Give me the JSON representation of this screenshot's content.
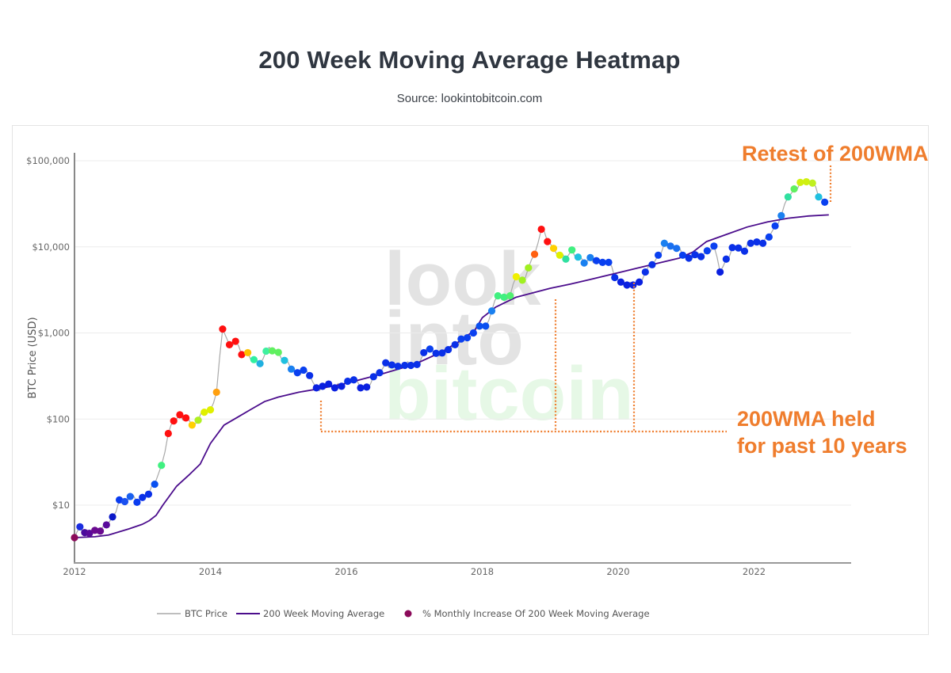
{
  "header": {
    "title": "200 Week Moving Average Heatmap",
    "subtitle": "Source: lookintobitcoin.com"
  },
  "watermark": {
    "lines": [
      "look",
      "into",
      "bitcoin"
    ],
    "colors": [
      "#e3e3e3",
      "#e3e3e3",
      "#e6f8e6"
    ]
  },
  "annotations": [
    {
      "text": "Retest of 200WMA",
      "color": "#ef7d2d"
    },
    {
      "text": "200WMA held",
      "color": "#ef7d2d"
    },
    {
      "text": "for past 10 years",
      "color": "#ef7d2d"
    }
  ],
  "annotation_lines": {
    "retest_vertical": {
      "x": 2023.1,
      "y_from": 52000,
      "y_to": 28000
    },
    "support_verticals": [
      {
        "x": 2015.65,
        "y_from": 200,
        "y_to": 84
      },
      {
        "x": 2019.05,
        "y_from": 3300,
        "y_to": 84
      },
      {
        "x": 2020.2,
        "y_from": 4000,
        "y_to": 84
      }
    ],
    "support_horizontal": {
      "y": 84,
      "x_from": 2015.65,
      "x_to": 2021.5
    },
    "color": "#ef7d2d"
  },
  "legend": {
    "items": [
      {
        "label": "BTC Price",
        "type": "line",
        "color": "#a9a9a9"
      },
      {
        "label": "200 Week Moving Average",
        "type": "line",
        "color": "#4b0d8c"
      },
      {
        "label": "% Monthly Increase Of 200 Week Moving Average",
        "type": "dot",
        "color": "#8b0a5a"
      }
    ]
  },
  "chart_data": {
    "type": "scatter",
    "title": "200 Week Moving Average Heatmap",
    "subtitle": "Source: lookintobitcoin.com",
    "xlabel": "",
    "ylabel": "BTC Price (USD)",
    "yscale": "log",
    "ylim": [
      2.1,
      160000
    ],
    "xlim": [
      2012.0,
      2023.3
    ],
    "x_ticks": [
      {
        "value": 2012,
        "label": "2012"
      },
      {
        "value": 2014,
        "label": "2014"
      },
      {
        "value": 2016,
        "label": "2016"
      },
      {
        "value": 2018,
        "label": "2018"
      },
      {
        "value": 2020,
        "label": "2020"
      },
      {
        "value": 2022,
        "label": "2022"
      }
    ],
    "y_ticks": [
      {
        "value": 10,
        "label": "$10"
      },
      {
        "value": 100,
        "label": "$100"
      },
      {
        "value": 1000,
        "label": "$1,000"
      },
      {
        "value": 10000,
        "label": "$10,000"
      },
      {
        "value": 100000,
        "label": "$100,000"
      }
    ],
    "grid": true,
    "legend_position": "bottom-center",
    "series": [
      {
        "name": "200 Week Moving Average",
        "type": "line",
        "color": "#4b0d8c",
        "x": [
          2012.0,
          2012.3,
          2012.5,
          2012.8,
          2013.0,
          2013.1,
          2013.2,
          2013.3,
          2013.5,
          2013.7,
          2013.85,
          2014.0,
          2014.2,
          2014.4,
          2014.6,
          2014.8,
          2015.0,
          2015.3,
          2015.6,
          2016.0,
          2016.5,
          2017.0,
          2017.4,
          2017.7,
          2017.9,
          2018.0,
          2018.2,
          2018.5,
          2018.8,
          2019.0,
          2019.3,
          2019.6,
          2020.0,
          2020.3,
          2020.6,
          2020.9,
          2021.1,
          2021.3,
          2021.6,
          2021.9,
          2022.2,
          2022.5,
          2022.8,
          2023.1
        ],
        "values": [
          4.2,
          4.3,
          4.5,
          5.3,
          6.0,
          6.6,
          7.6,
          10.0,
          16.5,
          23,
          30,
          52,
          85,
          105,
          130,
          160,
          180,
          205,
          225,
          260,
          330,
          430,
          600,
          830,
          1100,
          1500,
          2000,
          2600,
          3000,
          3300,
          3700,
          4200,
          5000,
          5700,
          6500,
          7400,
          8700,
          11500,
          14000,
          17000,
          19500,
          21500,
          22800,
          23500
        ]
      },
      {
        "name": "BTC Price",
        "type": "line",
        "color": "#a9a9a9",
        "note": "price path follows the heatmap points closely"
      },
      {
        "name": "% Monthly Increase Of 200 Week Moving Average",
        "type": "scatter",
        "color_scale": "purple(low) -> blue -> cyan -> green -> yellow -> orange -> red(high)",
        "points": [
          {
            "x": 2012.0,
            "y": 4.2,
            "c": "#8b0a5a"
          },
          {
            "x": 2012.08,
            "y": 5.6,
            "c": "#1a2de0"
          },
          {
            "x": 2012.15,
            "y": 4.8,
            "c": "#4a0a9c"
          },
          {
            "x": 2012.22,
            "y": 4.7,
            "c": "#5a0a9a"
          },
          {
            "x": 2012.3,
            "y": 5.1,
            "c": "#6a0a90"
          },
          {
            "x": 2012.38,
            "y": 5.0,
            "c": "#6a0a90"
          },
          {
            "x": 2012.47,
            "y": 5.9,
            "c": "#5a0a9c"
          },
          {
            "x": 2012.56,
            "y": 7.3,
            "c": "#0a18c8"
          },
          {
            "x": 2012.66,
            "y": 11.5,
            "c": "#0a3cf0"
          },
          {
            "x": 2012.74,
            "y": 11.0,
            "c": "#1a50f0"
          },
          {
            "x": 2012.82,
            "y": 12.6,
            "c": "#1a60f0"
          },
          {
            "x": 2012.92,
            "y": 10.8,
            "c": "#0a3cf0"
          },
          {
            "x": 2013.0,
            "y": 12.3,
            "c": "#0a30e8"
          },
          {
            "x": 2013.09,
            "y": 13.4,
            "c": "#0a30e8"
          },
          {
            "x": 2013.18,
            "y": 17.5,
            "c": "#0a50f0"
          },
          {
            "x": 2013.28,
            "y": 29,
            "c": "#40f080"
          },
          {
            "x": 2013.38,
            "y": 68,
            "c": "#ff1010"
          },
          {
            "x": 2013.46,
            "y": 95,
            "c": "#ff1010"
          },
          {
            "x": 2013.55,
            "y": 112,
            "c": "#ff1010"
          },
          {
            "x": 2013.64,
            "y": 103,
            "c": "#ff1010"
          },
          {
            "x": 2013.73,
            "y": 85,
            "c": "#ffd000"
          },
          {
            "x": 2013.82,
            "y": 97,
            "c": "#b0f020"
          },
          {
            "x": 2013.91,
            "y": 120,
            "c": "#e0f000"
          },
          {
            "x": 2014.0,
            "y": 128,
            "c": "#e0f000"
          },
          {
            "x": 2014.09,
            "y": 205,
            "c": "#ffa010"
          },
          {
            "x": 2014.18,
            "y": 1110,
            "c": "#ff1010"
          },
          {
            "x": 2014.28,
            "y": 730,
            "c": "#ff1010"
          },
          {
            "x": 2014.37,
            "y": 800,
            "c": "#ff1010"
          },
          {
            "x": 2014.46,
            "y": 560,
            "c": "#ff1010"
          },
          {
            "x": 2014.55,
            "y": 590,
            "c": "#ffc000"
          },
          {
            "x": 2014.64,
            "y": 490,
            "c": "#30f0a0"
          },
          {
            "x": 2014.73,
            "y": 440,
            "c": "#20b0e0"
          },
          {
            "x": 2014.82,
            "y": 615,
            "c": "#40f0a0"
          },
          {
            "x": 2014.91,
            "y": 620,
            "c": "#60f060"
          },
          {
            "x": 2015.0,
            "y": 595,
            "c": "#60f060"
          },
          {
            "x": 2015.09,
            "y": 480,
            "c": "#20c0e0"
          },
          {
            "x": 2015.19,
            "y": 380,
            "c": "#1a80f0"
          },
          {
            "x": 2015.28,
            "y": 345,
            "c": "#0a40f0"
          },
          {
            "x": 2015.37,
            "y": 370,
            "c": "#0a40f0"
          },
          {
            "x": 2015.46,
            "y": 320,
            "c": "#0a30e8"
          },
          {
            "x": 2015.56,
            "y": 230,
            "c": "#0a20e0"
          },
          {
            "x": 2015.65,
            "y": 240,
            "c": "#0a20e0"
          },
          {
            "x": 2015.74,
            "y": 255,
            "c": "#0a20e0"
          },
          {
            "x": 2015.83,
            "y": 230,
            "c": "#0a20e0"
          },
          {
            "x": 2015.93,
            "y": 240,
            "c": "#0a20e0"
          },
          {
            "x": 2016.02,
            "y": 275,
            "c": "#0a30e8"
          },
          {
            "x": 2016.11,
            "y": 285,
            "c": "#0a30e8"
          },
          {
            "x": 2016.21,
            "y": 230,
            "c": "#0a20e0"
          },
          {
            "x": 2016.3,
            "y": 235,
            "c": "#0a20e0"
          },
          {
            "x": 2016.4,
            "y": 310,
            "c": "#0a30e8"
          },
          {
            "x": 2016.49,
            "y": 345,
            "c": "#0a30e8"
          },
          {
            "x": 2016.58,
            "y": 450,
            "c": "#0a30e8"
          },
          {
            "x": 2016.67,
            "y": 425,
            "c": "#0a30e8"
          },
          {
            "x": 2016.76,
            "y": 410,
            "c": "#0a30e8"
          },
          {
            "x": 2016.86,
            "y": 420,
            "c": "#0a30e8"
          },
          {
            "x": 2016.95,
            "y": 420,
            "c": "#0a30e8"
          },
          {
            "x": 2017.04,
            "y": 430,
            "c": "#0a30e8"
          },
          {
            "x": 2017.14,
            "y": 590,
            "c": "#0a30e8"
          },
          {
            "x": 2017.23,
            "y": 650,
            "c": "#0a40f0"
          },
          {
            "x": 2017.32,
            "y": 580,
            "c": "#0a30e8"
          },
          {
            "x": 2017.41,
            "y": 585,
            "c": "#0a30e8"
          },
          {
            "x": 2017.5,
            "y": 640,
            "c": "#0a30e8"
          },
          {
            "x": 2017.6,
            "y": 730,
            "c": "#0a30e8"
          },
          {
            "x": 2017.69,
            "y": 850,
            "c": "#0a40f0"
          },
          {
            "x": 2017.78,
            "y": 880,
            "c": "#0a40f0"
          },
          {
            "x": 2017.87,
            "y": 1000,
            "c": "#0a40f0"
          },
          {
            "x": 2017.96,
            "y": 1200,
            "c": "#0a50f0"
          },
          {
            "x": 2018.05,
            "y": 1200,
            "c": "#0a50f0"
          },
          {
            "x": 2018.14,
            "y": 1800,
            "c": "#1a80f0"
          },
          {
            "x": 2018.23,
            "y": 2700,
            "c": "#40f080"
          },
          {
            "x": 2018.32,
            "y": 2600,
            "c": "#40f080"
          },
          {
            "x": 2018.41,
            "y": 2700,
            "c": "#50f070"
          },
          {
            "x": 2018.5,
            "y": 4500,
            "c": "#f0f000"
          },
          {
            "x": 2018.59,
            "y": 4100,
            "c": "#a0f020"
          },
          {
            "x": 2018.68,
            "y": 5700,
            "c": "#a0f020"
          },
          {
            "x": 2018.77,
            "y": 8200,
            "c": "#ff6010"
          },
          {
            "x": 2018.87,
            "y": 16000,
            "c": "#ff1010"
          },
          {
            "x": 2018.96,
            "y": 11500,
            "c": "#ff1010"
          },
          {
            "x": 2019.05,
            "y": 9600,
            "c": "#ffd000"
          },
          {
            "x": 2019.14,
            "y": 8000,
            "c": "#e0f000"
          },
          {
            "x": 2019.23,
            "y": 7200,
            "c": "#30e0a0"
          },
          {
            "x": 2019.32,
            "y": 9200,
            "c": "#40f080"
          },
          {
            "x": 2019.41,
            "y": 7600,
            "c": "#20c0e0"
          },
          {
            "x": 2019.5,
            "y": 6500,
            "c": "#1a80f0"
          },
          {
            "x": 2019.59,
            "y": 7500,
            "c": "#1a80f0"
          },
          {
            "x": 2019.68,
            "y": 6900,
            "c": "#0a40f0"
          },
          {
            "x": 2019.77,
            "y": 6600,
            "c": "#0a40f0"
          },
          {
            "x": 2019.86,
            "y": 6600,
            "c": "#0a40f0"
          },
          {
            "x": 2019.95,
            "y": 4400,
            "c": "#0a30e8"
          },
          {
            "x": 2020.04,
            "y": 3900,
            "c": "#0a20e0"
          },
          {
            "x": 2020.13,
            "y": 3600,
            "c": "#0a20e0"
          },
          {
            "x": 2020.22,
            "y": 3600,
            "c": "#0a20e0"
          },
          {
            "x": 2020.31,
            "y": 3900,
            "c": "#0a20e0"
          },
          {
            "x": 2020.4,
            "y": 5100,
            "c": "#0a30e8"
          },
          {
            "x": 2020.5,
            "y": 6200,
            "c": "#0a30e8"
          },
          {
            "x": 2020.59,
            "y": 8000,
            "c": "#0a40f0"
          },
          {
            "x": 2020.68,
            "y": 11000,
            "c": "#1a80f0"
          },
          {
            "x": 2020.77,
            "y": 10200,
            "c": "#1a70f0"
          },
          {
            "x": 2020.86,
            "y": 9600,
            "c": "#1a70f0"
          },
          {
            "x": 2020.95,
            "y": 8000,
            "c": "#0a40f0"
          },
          {
            "x": 2021.04,
            "y": 7400,
            "c": "#0a30e8"
          },
          {
            "x": 2021.13,
            "y": 8100,
            "c": "#0a30e8"
          },
          {
            "x": 2021.22,
            "y": 7700,
            "c": "#0a30e8"
          },
          {
            "x": 2021.31,
            "y": 9000,
            "c": "#0a40f0"
          },
          {
            "x": 2021.41,
            "y": 10200,
            "c": "#0a40f0"
          },
          {
            "x": 2021.5,
            "y": 5100,
            "c": "#0a20e0"
          },
          {
            "x": 2021.59,
            "y": 7200,
            "c": "#0a30e8"
          },
          {
            "x": 2021.68,
            "y": 9800,
            "c": "#0a30e8"
          },
          {
            "x": 2021.77,
            "y": 9700,
            "c": "#0a30e8"
          },
          {
            "x": 2021.86,
            "y": 8900,
            "c": "#0a30e8"
          },
          {
            "x": 2021.95,
            "y": 11000,
            "c": "#0a30e8"
          },
          {
            "x": 2022.04,
            "y": 11400,
            "c": "#0a30e8"
          },
          {
            "x": 2022.13,
            "y": 11000,
            "c": "#0a30e8"
          },
          {
            "x": 2022.22,
            "y": 13000,
            "c": "#0a40f0"
          },
          {
            "x": 2022.31,
            "y": 17500,
            "c": "#0a40f0"
          },
          {
            "x": 2022.4,
            "y": 23000,
            "c": "#1a80f0"
          },
          {
            "x": 2022.5,
            "y": 38000,
            "c": "#30e0a0"
          },
          {
            "x": 2022.59,
            "y": 47000,
            "c": "#60f060"
          },
          {
            "x": 2022.68,
            "y": 56000,
            "c": "#d0f010"
          },
          {
            "x": 2022.77,
            "y": 57000,
            "c": "#d0f010"
          },
          {
            "x": 2022.86,
            "y": 55000,
            "c": "#c0f020"
          },
          {
            "x": 2022.95,
            "y": 38000,
            "c": "#20c0e0"
          },
          {
            "x": 2023.04,
            "y": 33000,
            "c": "#0a40f0"
          }
        ]
      }
    ]
  }
}
